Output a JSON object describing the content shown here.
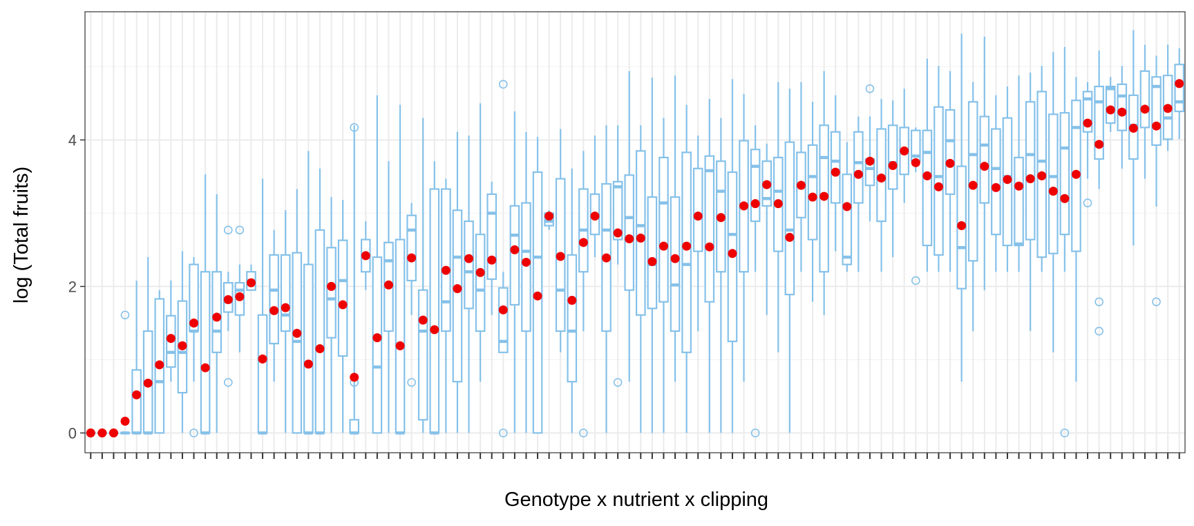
{
  "chart_data": {
    "type": "box",
    "title": "",
    "xlabel": "Genotype x nutrient x clipping",
    "ylabel": "log (Total fruits)",
    "ylim": [
      -0.27,
      5.75
    ],
    "yticks": [
      0,
      2,
      4
    ],
    "grid": true,
    "legend": "none",
    "colors": {
      "box": "#85C1E9",
      "mean": "#EE0000",
      "grid_major": "#EBEBEB",
      "grid_minor": "#F4F4F4",
      "axis_text": "#4D4D4D",
      "panel_border": "#333333"
    },
    "mean_unit": "mean",
    "groups": [
      {
        "min": 0,
        "q1": 0,
        "median": 0,
        "q3": 0,
        "max": 0,
        "mean": 0,
        "outliers": []
      },
      {
        "min": 0,
        "q1": 0,
        "median": 0,
        "q3": 0,
        "max": 0,
        "mean": 0,
        "outliers": []
      },
      {
        "min": 0,
        "q1": 0,
        "median": 0,
        "q3": 0,
        "max": 0,
        "mean": 0,
        "outliers": []
      },
      {
        "min": 0,
        "q1": 0,
        "median": 0,
        "q3": 0,
        "max": 0,
        "mean": 0.16,
        "outliers": [
          1.61
        ]
      },
      {
        "min": 0,
        "q1": 0,
        "median": 0,
        "q3": 0.86,
        "max": 2.08,
        "mean": 0.52,
        "outliers": []
      },
      {
        "min": 0,
        "q1": 0,
        "median": 0,
        "q3": 1.39,
        "max": 2.4,
        "mean": 0.68,
        "outliers": []
      },
      {
        "min": 0,
        "q1": 0,
        "median": 0.7,
        "q3": 1.83,
        "max": 1.95,
        "mean": 0.93,
        "outliers": []
      },
      {
        "min": 0.7,
        "q1": 0.9,
        "median": 1.1,
        "q3": 1.6,
        "max": 2.08,
        "mean": 1.29,
        "outliers": []
      },
      {
        "min": 0,
        "q1": 0.55,
        "median": 1.1,
        "q3": 1.8,
        "max": 2.48,
        "mean": 1.19,
        "outliers": []
      },
      {
        "min": 0.7,
        "q1": 1.39,
        "median": 1.39,
        "q3": 2.3,
        "max": 2.4,
        "mean": 1.5,
        "outliers": [
          0
        ]
      },
      {
        "min": 0,
        "q1": 0,
        "median": 0,
        "q3": 2.2,
        "max": 3.53,
        "mean": 0.89,
        "outliers": []
      },
      {
        "min": 0,
        "q1": 1.1,
        "median": 1.39,
        "q3": 2.2,
        "max": 3.26,
        "mean": 1.58,
        "outliers": []
      },
      {
        "min": 1.39,
        "q1": 1.65,
        "median": 1.79,
        "q3": 2.05,
        "max": 2.2,
        "mean": 1.82,
        "outliers": [
          0.69,
          2.77
        ]
      },
      {
        "min": 1.1,
        "q1": 1.61,
        "median": 1.95,
        "q3": 2.05,
        "max": 2.3,
        "mean": 1.86,
        "outliers": [
          2.77
        ]
      },
      {
        "min": 1.95,
        "q1": 1.95,
        "median": 2.08,
        "q3": 2.2,
        "max": 2.3,
        "mean": 2.05,
        "outliers": []
      },
      {
        "min": 0,
        "q1": 0,
        "median": 0,
        "q3": 1.61,
        "max": 3.47,
        "mean": 1.01,
        "outliers": []
      },
      {
        "min": 0.7,
        "q1": 1.22,
        "median": 1.95,
        "q3": 2.43,
        "max": 2.77,
        "mean": 1.67,
        "outliers": []
      },
      {
        "min": 0,
        "q1": 1.39,
        "median": 1.61,
        "q3": 2.43,
        "max": 3.04,
        "mean": 1.71,
        "outliers": []
      },
      {
        "min": 0,
        "q1": 0,
        "median": 1.25,
        "q3": 2.46,
        "max": 3.33,
        "mean": 1.36,
        "outliers": []
      },
      {
        "min": 0,
        "q1": 0,
        "median": 0,
        "q3": 2.3,
        "max": 3.85,
        "mean": 0.94,
        "outliers": []
      },
      {
        "min": 0,
        "q1": 0,
        "median": 0,
        "q3": 2.77,
        "max": 3.61,
        "mean": 1.15,
        "outliers": []
      },
      {
        "min": 0,
        "q1": 1.3,
        "median": 1.83,
        "q3": 2.53,
        "max": 3.22,
        "mean": 2.0,
        "outliers": []
      },
      {
        "min": 0,
        "q1": 1.05,
        "median": 2.08,
        "q3": 2.63,
        "max": 3.18,
        "mean": 1.75,
        "outliers": []
      },
      {
        "min": 0,
        "q1": 0,
        "median": 0,
        "q3": 0.18,
        "max": 4.2,
        "mean": 0.76,
        "outliers": [
          0.69,
          4.17
        ]
      },
      {
        "min": 1.95,
        "q1": 2.2,
        "median": 2.4,
        "q3": 2.64,
        "max": 2.89,
        "mean": 2.42,
        "outliers": []
      },
      {
        "min": 0,
        "q1": 0,
        "median": 0.9,
        "q3": 2.4,
        "max": 4.61,
        "mean": 1.3,
        "outliers": []
      },
      {
        "min": 0,
        "q1": 1.39,
        "median": 2.35,
        "q3": 2.6,
        "max": 3.71,
        "mean": 2.02,
        "outliers": []
      },
      {
        "min": 0,
        "q1": 0,
        "median": 0,
        "q3": 2.64,
        "max": 4.48,
        "mean": 1.19,
        "outliers": []
      },
      {
        "min": 1.61,
        "q1": 2.08,
        "median": 2.77,
        "q3": 2.97,
        "max": 3.14,
        "mean": 2.39,
        "outliers": [
          0.69
        ]
      },
      {
        "min": 0,
        "q1": 0.18,
        "median": 1.39,
        "q3": 1.95,
        "max": 4.3,
        "mean": 1.54,
        "outliers": []
      },
      {
        "min": 0,
        "q1": 0,
        "median": 0,
        "q3": 3.33,
        "max": 3.71,
        "mean": 1.41,
        "outliers": []
      },
      {
        "min": 0,
        "q1": 1.39,
        "median": 1.79,
        "q3": 3.33,
        "max": 3.47,
        "mean": 2.22,
        "outliers": []
      },
      {
        "min": 0,
        "q1": 0.7,
        "median": 2.4,
        "q3": 3.04,
        "max": 4.11,
        "mean": 1.97,
        "outliers": []
      },
      {
        "min": 0,
        "q1": 1.7,
        "median": 2.2,
        "q3": 2.89,
        "max": 4.06,
        "mean": 2.38,
        "outliers": []
      },
      {
        "min": 0.7,
        "q1": 1.39,
        "median": 1.95,
        "q3": 2.71,
        "max": 4.5,
        "mean": 2.19,
        "outliers": []
      },
      {
        "min": 1.61,
        "q1": 2.1,
        "median": 3.0,
        "q3": 3.26,
        "max": 3.43,
        "mean": 2.36,
        "outliers": []
      },
      {
        "min": 1.1,
        "q1": 1.1,
        "median": 1.25,
        "q3": 1.98,
        "max": 2.2,
        "mean": 1.68,
        "outliers": [
          0,
          4.76
        ]
      },
      {
        "min": 0,
        "q1": 1.75,
        "median": 2.7,
        "q3": 3.1,
        "max": 4.39,
        "mean": 2.5,
        "outliers": []
      },
      {
        "min": 0,
        "q1": 1.39,
        "median": 2.48,
        "q3": 3.14,
        "max": 4.11,
        "mean": 2.33,
        "outliers": []
      },
      {
        "min": 0,
        "q1": 0,
        "median": 2.4,
        "q3": 3.56,
        "max": 4.04,
        "mean": 1.87,
        "outliers": []
      },
      {
        "min": 2.77,
        "q1": 2.83,
        "median": 2.89,
        "q3": 3.0,
        "max": 3.04,
        "mean": 2.96,
        "outliers": []
      },
      {
        "min": 1.1,
        "q1": 1.39,
        "median": 1.95,
        "q3": 3.47,
        "max": 4.15,
        "mean": 2.41,
        "outliers": []
      },
      {
        "min": 0,
        "q1": 0.7,
        "median": 1.39,
        "q3": 2.43,
        "max": 3.61,
        "mean": 1.81,
        "outliers": []
      },
      {
        "min": 1.39,
        "q1": 2.2,
        "median": 2.77,
        "q3": 3.33,
        "max": 3.85,
        "mean": 2.6,
        "outliers": [
          0
        ]
      },
      {
        "min": 2.4,
        "q1": 2.71,
        "median": 2.96,
        "q3": 3.26,
        "max": 4.06,
        "mean": 2.96,
        "outliers": []
      },
      {
        "min": 0,
        "q1": 1.39,
        "median": 2.77,
        "q3": 3.4,
        "max": 4.2,
        "mean": 2.39,
        "outliers": []
      },
      {
        "min": 2.3,
        "q1": 2.64,
        "median": 3.36,
        "q3": 3.43,
        "max": 4.2,
        "mean": 2.73,
        "outliers": [
          0.69
        ]
      },
      {
        "min": 0.7,
        "q1": 1.95,
        "median": 2.94,
        "q3": 3.52,
        "max": 4.94,
        "mean": 2.65,
        "outliers": []
      },
      {
        "min": 0,
        "q1": 1.61,
        "median": 2.83,
        "q3": 3.85,
        "max": 4.2,
        "mean": 2.66,
        "outliers": []
      },
      {
        "min": 0,
        "q1": 1.7,
        "median": 2.3,
        "q3": 3.22,
        "max": 4.85,
        "mean": 2.34,
        "outliers": []
      },
      {
        "min": 0,
        "q1": 1.79,
        "median": 3.14,
        "q3": 3.76,
        "max": 4.3,
        "mean": 2.55,
        "outliers": []
      },
      {
        "min": 0.7,
        "q1": 1.39,
        "median": 2.02,
        "q3": 3.22,
        "max": 4.88,
        "mean": 2.38,
        "outliers": []
      },
      {
        "min": 0,
        "q1": 1.1,
        "median": 2.3,
        "q3": 3.83,
        "max": 4.48,
        "mean": 2.55,
        "outliers": []
      },
      {
        "min": 1.39,
        "q1": 2.48,
        "median": 2.94,
        "q3": 3.61,
        "max": 4.06,
        "mean": 2.96,
        "outliers": []
      },
      {
        "min": 0,
        "q1": 1.79,
        "median": 3.58,
        "q3": 3.78,
        "max": 4.56,
        "mean": 2.54,
        "outliers": []
      },
      {
        "min": 0,
        "q1": 2.2,
        "median": 3.3,
        "q3": 3.71,
        "max": 4.3,
        "mean": 2.94,
        "outliers": []
      },
      {
        "min": 0,
        "q1": 1.25,
        "median": 2.71,
        "q3": 3.56,
        "max": 4.83,
        "mean": 2.45,
        "outliers": []
      },
      {
        "min": 0.7,
        "q1": 2.2,
        "median": 3.1,
        "q3": 3.99,
        "max": 4.63,
        "mean": 3.1,
        "outliers": []
      },
      {
        "min": 2.2,
        "q1": 2.89,
        "median": 3.64,
        "q3": 3.87,
        "max": 4.2,
        "mean": 3.13,
        "outliers": [
          0
        ]
      },
      {
        "min": 1.61,
        "q1": 3.1,
        "median": 3.2,
        "q3": 3.71,
        "max": 3.95,
        "mean": 3.39,
        "outliers": []
      },
      {
        "min": 1.1,
        "q1": 2.48,
        "median": 3.3,
        "q3": 3.76,
        "max": 4.79,
        "mean": 3.13,
        "outliers": []
      },
      {
        "min": 0,
        "q1": 1.89,
        "median": 2.77,
        "q3": 3.97,
        "max": 4.7,
        "mean": 2.67,
        "outliers": []
      },
      {
        "min": 2.2,
        "q1": 2.94,
        "median": 3.4,
        "q3": 3.83,
        "max": 4.79,
        "mean": 3.38,
        "outliers": []
      },
      {
        "min": 1.79,
        "q1": 2.64,
        "median": 3.5,
        "q3": 3.93,
        "max": 4.52,
        "mean": 3.22,
        "outliers": []
      },
      {
        "min": 1.61,
        "q1": 2.2,
        "median": 3.76,
        "q3": 4.2,
        "max": 4.94,
        "mean": 3.23,
        "outliers": []
      },
      {
        "min": 2.48,
        "q1": 3.14,
        "median": 3.71,
        "q3": 4.11,
        "max": 4.61,
        "mean": 3.56,
        "outliers": []
      },
      {
        "min": 2.2,
        "q1": 2.3,
        "median": 2.4,
        "q3": 3.53,
        "max": 3.97,
        "mean": 3.09,
        "outliers": []
      },
      {
        "min": 2.2,
        "q1": 3.14,
        "median": 3.69,
        "q3": 4.11,
        "max": 4.32,
        "mean": 3.53,
        "outliers": []
      },
      {
        "min": 2.89,
        "q1": 3.38,
        "median": 3.61,
        "q3": 3.74,
        "max": 4.32,
        "mean": 3.71,
        "outliers": [
          4.7
        ]
      },
      {
        "min": 2.2,
        "q1": 2.89,
        "median": 3.5,
        "q3": 4.15,
        "max": 4.56,
        "mean": 3.48,
        "outliers": []
      },
      {
        "min": 2.4,
        "q1": 3.33,
        "median": 3.69,
        "q3": 4.2,
        "max": 4.54,
        "mean": 3.65,
        "outliers": []
      },
      {
        "min": 3.14,
        "q1": 3.53,
        "median": 3.85,
        "q3": 4.17,
        "max": 4.7,
        "mean": 3.85,
        "outliers": []
      },
      {
        "min": 3.56,
        "q1": 3.71,
        "median": 3.78,
        "q3": 4.13,
        "max": 4.17,
        "mean": 3.69,
        "outliers": [
          2.08
        ]
      },
      {
        "min": 2.2,
        "q1": 2.56,
        "median": 3.83,
        "q3": 4.13,
        "max": 5.11,
        "mean": 3.51,
        "outliers": []
      },
      {
        "min": 2.2,
        "q1": 2.43,
        "median": 3.5,
        "q3": 4.45,
        "max": 5.01,
        "mean": 3.36,
        "outliers": []
      },
      {
        "min": 2.2,
        "q1": 3.26,
        "median": 3.99,
        "q3": 4.41,
        "max": 4.94,
        "mean": 3.68,
        "outliers": []
      },
      {
        "min": 0.7,
        "q1": 1.97,
        "median": 2.53,
        "q3": 3.64,
        "max": 5.45,
        "mean": 2.83,
        "outliers": []
      },
      {
        "min": 1.39,
        "q1": 2.35,
        "median": 3.8,
        "q3": 4.52,
        "max": 4.79,
        "mean": 3.38,
        "outliers": []
      },
      {
        "min": 1.95,
        "q1": 3.14,
        "median": 3.93,
        "q3": 4.32,
        "max": 5.41,
        "mean": 3.64,
        "outliers": []
      },
      {
        "min": 2.2,
        "q1": 2.71,
        "median": 3.61,
        "q3": 4.15,
        "max": 4.61,
        "mean": 3.35,
        "outliers": []
      },
      {
        "min": 2.2,
        "q1": 2.56,
        "median": 3.5,
        "q3": 4.3,
        "max": 4.73,
        "mean": 3.46,
        "outliers": []
      },
      {
        "min": 2.2,
        "q1": 2.56,
        "median": 2.58,
        "q3": 3.76,
        "max": 4.88,
        "mean": 3.37,
        "outliers": []
      },
      {
        "min": 1.39,
        "q1": 2.64,
        "median": 3.8,
        "q3": 4.52,
        "max": 4.92,
        "mean": 3.47,
        "outliers": []
      },
      {
        "min": 2.2,
        "q1": 2.4,
        "median": 3.71,
        "q3": 4.66,
        "max": 5.01,
        "mean": 3.51,
        "outliers": []
      },
      {
        "min": 1.1,
        "q1": 2.45,
        "median": 3.5,
        "q3": 4.35,
        "max": 5.2,
        "mean": 3.3,
        "outliers": []
      },
      {
        "min": 2.2,
        "q1": 2.71,
        "median": 3.89,
        "q3": 4.37,
        "max": 5.27,
        "mean": 3.2,
        "outliers": [
          0
        ]
      },
      {
        "min": 0.7,
        "q1": 2.48,
        "median": 4.17,
        "q3": 4.54,
        "max": 4.86,
        "mean": 3.53,
        "outliers": []
      },
      {
        "min": 3.47,
        "q1": 4.11,
        "median": 4.56,
        "q3": 4.66,
        "max": 4.79,
        "mean": 4.23,
        "outliers": [
          3.14
        ]
      },
      {
        "min": 3.33,
        "q1": 3.74,
        "median": 4.52,
        "q3": 4.73,
        "max": 5.22,
        "mean": 3.94,
        "outliers": [
          1.39,
          1.79
        ]
      },
      {
        "min": 4.11,
        "q1": 4.23,
        "median": 4.7,
        "q3": 4.73,
        "max": 4.86,
        "mean": 4.41,
        "outliers": []
      },
      {
        "min": 3.61,
        "q1": 4.13,
        "median": 4.6,
        "q3": 4.76,
        "max": 5.01,
        "mean": 4.38,
        "outliers": []
      },
      {
        "min": 2.56,
        "q1": 3.74,
        "median": 4.2,
        "q3": 4.61,
        "max": 5.5,
        "mean": 4.16,
        "outliers": []
      },
      {
        "min": 3.47,
        "q1": 4.17,
        "median": 4.43,
        "q3": 4.94,
        "max": 5.3,
        "mean": 4.42,
        "outliers": []
      },
      {
        "min": 3.09,
        "q1": 3.93,
        "median": 4.73,
        "q3": 4.86,
        "max": 5.15,
        "mean": 4.19,
        "outliers": [
          1.79
        ]
      },
      {
        "min": 3.85,
        "q1": 4.01,
        "median": 4.3,
        "q3": 4.88,
        "max": 5.3,
        "mean": 4.43,
        "outliers": []
      },
      {
        "min": 4.01,
        "q1": 4.39,
        "median": 4.52,
        "q3": 5.03,
        "max": 5.25,
        "mean": 4.77,
        "outliers": []
      }
    ]
  }
}
